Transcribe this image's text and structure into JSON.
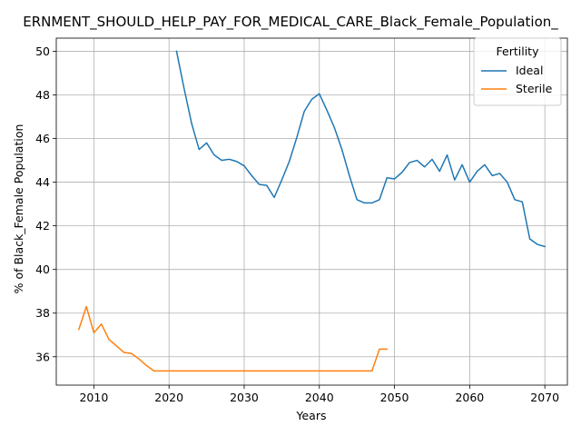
{
  "chart_data": {
    "type": "line",
    "title": "ERNMENT_SHOULD_HELP_PAY_FOR_MEDICAL_CARE_Black_Female_Population_",
    "xlabel": "Years",
    "ylabel": "% of Black_Female Population",
    "xlim": [
      2005,
      2073
    ],
    "ylim": [
      34.7,
      50.6
    ],
    "xticks": [
      2010,
      2020,
      2030,
      2040,
      2050,
      2060,
      2070
    ],
    "yticks": [
      36,
      38,
      40,
      42,
      44,
      46,
      48,
      50
    ],
    "grid": true,
    "legend": {
      "title": "Fertility",
      "placement": "top-right"
    },
    "series": [
      {
        "name": "Ideal",
        "color": "#1f77b4",
        "x": [
          2021,
          2022,
          2023,
          2024,
          2025,
          2026,
          2027,
          2028,
          2029,
          2030,
          2031,
          2032,
          2033,
          2034,
          2035,
          2036,
          2037,
          2038,
          2039,
          2040,
          2041,
          2042,
          2043,
          2044,
          2045,
          2046,
          2047,
          2048,
          2049,
          2050,
          2051,
          2052,
          2053,
          2054,
          2055,
          2056,
          2057,
          2058,
          2059,
          2060,
          2061,
          2062,
          2063,
          2064,
          2065,
          2066,
          2067,
          2068,
          2069,
          2070
        ],
        "y": [
          50.0,
          48.3,
          46.7,
          45.5,
          45.8,
          45.25,
          45.0,
          45.05,
          44.95,
          44.75,
          44.3,
          43.9,
          43.85,
          43.3,
          44.1,
          44.95,
          46.05,
          47.25,
          47.8,
          48.05,
          47.3,
          46.5,
          45.5,
          44.3,
          43.2,
          43.05,
          43.05,
          43.2,
          44.2,
          44.15,
          44.45,
          44.9,
          45.0,
          44.7,
          45.05,
          44.5,
          45.25,
          44.1,
          44.8,
          44.0,
          44.5,
          44.8,
          44.3,
          44.4,
          44.0,
          43.2,
          43.1,
          41.4,
          41.15,
          41.05
        ]
      },
      {
        "name": "Sterile",
        "color": "#ff7f0e",
        "x": [
          2008,
          2009,
          2010,
          2011,
          2012,
          2013,
          2014,
          2015,
          2016,
          2017,
          2018,
          2019,
          2020,
          2021,
          2022,
          2023,
          2024,
          2025,
          2026,
          2027,
          2028,
          2029,
          2030,
          2031,
          2032,
          2033,
          2034,
          2035,
          2036,
          2037,
          2038,
          2039,
          2040,
          2041,
          2042,
          2043,
          2044,
          2045,
          2046,
          2047,
          2048,
          2049
        ],
        "y": [
          37.25,
          38.3,
          37.1,
          37.5,
          36.8,
          36.5,
          36.2,
          36.15,
          35.9,
          35.6,
          35.35,
          35.35,
          35.35,
          35.35,
          35.35,
          35.35,
          35.35,
          35.35,
          35.35,
          35.35,
          35.35,
          35.35,
          35.35,
          35.35,
          35.35,
          35.35,
          35.35,
          35.35,
          35.35,
          35.35,
          35.35,
          35.35,
          35.35,
          35.35,
          35.35,
          35.35,
          35.35,
          35.35,
          35.35,
          35.35,
          36.35,
          36.35
        ]
      }
    ]
  }
}
